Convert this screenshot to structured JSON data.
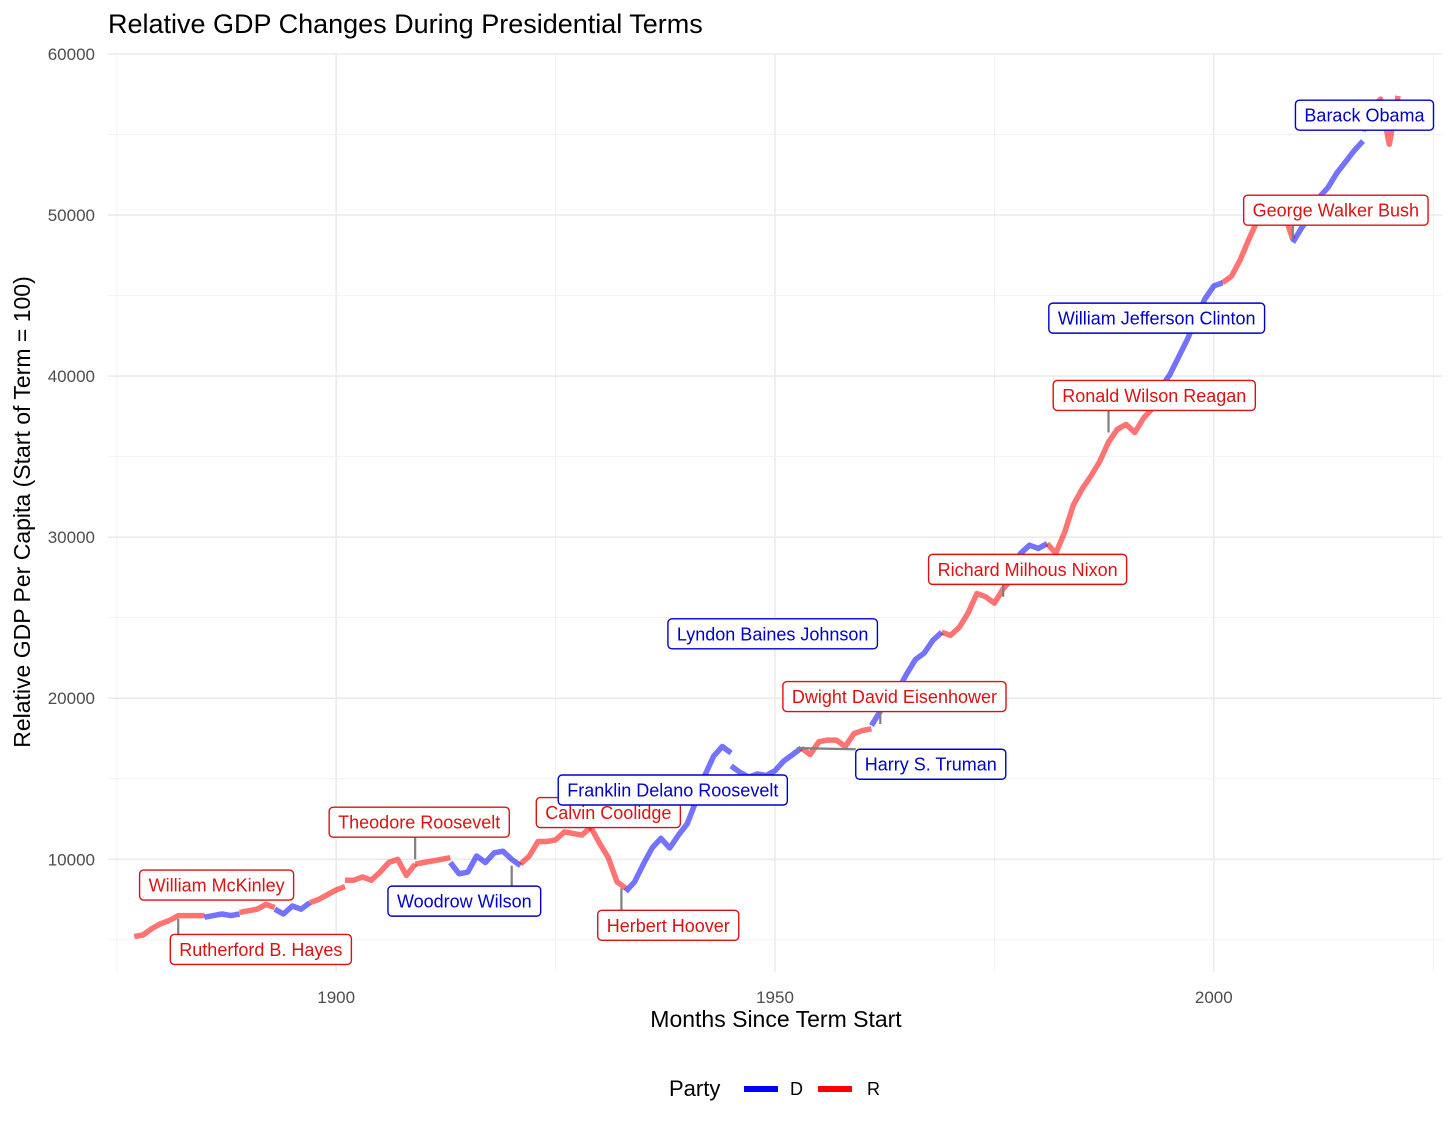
{
  "chart_data": {
    "type": "line",
    "title": "Relative GDP Changes During Presidential Terms",
    "xlabel": "Months Since Term Start",
    "ylabel": "Relative GDP Per Capita (Start of Term = 100)",
    "xlim": [
      1874,
      2026
    ],
    "ylim": [
      3000,
      60000
    ],
    "x_ticks": [
      1900,
      1950,
      2000
    ],
    "y_ticks": [
      10000,
      20000,
      30000,
      40000,
      50000,
      60000
    ],
    "grid": true,
    "legend": {
      "title": "Party",
      "placement": "bottom",
      "entries": [
        {
          "label": "D",
          "color": "#0000ff"
        },
        {
          "label": "R",
          "color": "#ff0000"
        }
      ]
    },
    "colors": {
      "D": "#0000ff",
      "R": "#ff0000",
      "D_label": "#0000cc",
      "R_label": "#dd1111"
    },
    "series": [
      {
        "party": "R",
        "points": [
          [
            1877,
            5200
          ],
          [
            1878,
            5300
          ],
          [
            1879,
            5700
          ],
          [
            1880,
            6000
          ],
          [
            1881,
            6200
          ]
        ]
      },
      {
        "party": "R",
        "points": [
          [
            1881,
            6200
          ],
          [
            1882,
            6500
          ],
          [
            1883,
            6500
          ],
          [
            1884,
            6500
          ],
          [
            1885,
            6500
          ]
        ]
      },
      {
        "party": "D",
        "points": [
          [
            1885,
            6400
          ],
          [
            1886,
            6500
          ],
          [
            1887,
            6600
          ],
          [
            1888,
            6500
          ],
          [
            1889,
            6600
          ]
        ]
      },
      {
        "party": "R",
        "points": [
          [
            1889,
            6700
          ],
          [
            1890,
            6800
          ],
          [
            1891,
            6900
          ],
          [
            1892,
            7200
          ],
          [
            1893,
            7000
          ]
        ]
      },
      {
        "party": "D",
        "points": [
          [
            1893,
            6900
          ],
          [
            1894,
            6600
          ],
          [
            1895,
            7100
          ],
          [
            1896,
            6900
          ],
          [
            1897,
            7300
          ]
        ]
      },
      {
        "party": "R",
        "points": [
          [
            1897,
            7300
          ],
          [
            1898,
            7500
          ],
          [
            1899,
            7800
          ],
          [
            1900,
            8100
          ],
          [
            1901,
            8300
          ]
        ]
      },
      {
        "party": "R",
        "points": [
          [
            1901,
            8700
          ],
          [
            1902,
            8700
          ],
          [
            1903,
            8900
          ],
          [
            1904,
            8700
          ],
          [
            1905,
            9200
          ],
          [
            1906,
            9800
          ],
          [
            1907,
            10000
          ],
          [
            1908,
            9000
          ],
          [
            1909,
            9700
          ]
        ]
      },
      {
        "party": "R",
        "points": [
          [
            1909,
            9700
          ],
          [
            1910,
            9800
          ],
          [
            1911,
            9900
          ],
          [
            1912,
            10000
          ],
          [
            1913,
            10100
          ]
        ]
      },
      {
        "party": "D",
        "points": [
          [
            1913,
            9800
          ],
          [
            1914,
            9100
          ],
          [
            1915,
            9200
          ],
          [
            1916,
            10200
          ],
          [
            1917,
            9800
          ],
          [
            1918,
            10400
          ],
          [
            1919,
            10500
          ],
          [
            1920,
            10000
          ],
          [
            1921,
            9600
          ]
        ]
      },
      {
        "party": "R",
        "points": [
          [
            1921,
            9700
          ],
          [
            1922,
            10200
          ],
          [
            1923,
            11100
          ],
          [
            1924,
            11100
          ],
          [
            1925,
            11200
          ],
          [
            1926,
            11700
          ],
          [
            1927,
            11600
          ],
          [
            1928,
            11500
          ],
          [
            1929,
            12000
          ]
        ]
      },
      {
        "party": "R",
        "points": [
          [
            1929,
            12000
          ],
          [
            1930,
            11000
          ],
          [
            1931,
            10100
          ],
          [
            1932,
            8600
          ],
          [
            1933,
            8200
          ]
        ]
      },
      {
        "party": "D",
        "points": [
          [
            1933,
            8000
          ],
          [
            1934,
            8600
          ],
          [
            1935,
            9700
          ],
          [
            1936,
            10700
          ],
          [
            1937,
            11300
          ],
          [
            1938,
            10700
          ],
          [
            1939,
            11500
          ],
          [
            1940,
            12200
          ],
          [
            1941,
            13600
          ],
          [
            1942,
            15200
          ],
          [
            1943,
            16400
          ],
          [
            1944,
            17000
          ],
          [
            1945,
            16600
          ]
        ]
      },
      {
        "party": "D",
        "points": [
          [
            1945,
            15800
          ],
          [
            1946,
            15400
          ],
          [
            1947,
            15100
          ],
          [
            1948,
            15300
          ],
          [
            1949,
            15200
          ],
          [
            1950,
            15500
          ],
          [
            1951,
            16100
          ],
          [
            1952,
            16500
          ],
          [
            1953,
            16900
          ]
        ]
      },
      {
        "party": "R",
        "points": [
          [
            1953,
            16900
          ],
          [
            1954,
            16500
          ],
          [
            1955,
            17300
          ],
          [
            1956,
            17400
          ],
          [
            1957,
            17400
          ],
          [
            1958,
            17000
          ],
          [
            1959,
            17800
          ],
          [
            1960,
            18000
          ],
          [
            1961,
            18100
          ]
        ]
      },
      {
        "party": "D",
        "points": [
          [
            1961,
            18300
          ],
          [
            1962,
            19200
          ],
          [
            1963,
            19800
          ],
          [
            1964,
            20500
          ],
          [
            1965,
            21500
          ],
          [
            1966,
            22400
          ],
          [
            1967,
            22800
          ],
          [
            1968,
            23600
          ],
          [
            1969,
            24100
          ]
        ]
      },
      {
        "party": "R",
        "points": [
          [
            1969,
            24100
          ],
          [
            1970,
            23900
          ],
          [
            1971,
            24400
          ],
          [
            1972,
            25300
          ],
          [
            1973,
            26500
          ],
          [
            1974,
            26300
          ],
          [
            1975,
            25900
          ],
          [
            1976,
            26800
          ],
          [
            1977,
            27400
          ]
        ]
      },
      {
        "party": "D",
        "points": [
          [
            1977,
            28200
          ],
          [
            1978,
            29000
          ],
          [
            1979,
            29500
          ],
          [
            1980,
            29300
          ],
          [
            1981,
            29600
          ]
        ]
      },
      {
        "party": "R",
        "points": [
          [
            1981,
            29600
          ],
          [
            1982,
            29000
          ],
          [
            1983,
            30300
          ],
          [
            1984,
            32000
          ],
          [
            1985,
            33000
          ],
          [
            1986,
            33800
          ],
          [
            1987,
            34700
          ],
          [
            1988,
            35900
          ],
          [
            1989,
            36700
          ],
          [
            1990,
            37000
          ],
          [
            1991,
            36500
          ],
          [
            1992,
            37400
          ],
          [
            1993,
            38000
          ]
        ]
      },
      {
        "party": "D",
        "points": [
          [
            1993,
            38500
          ],
          [
            1994,
            39300
          ],
          [
            1995,
            40100
          ],
          [
            1996,
            41200
          ],
          [
            1997,
            42300
          ],
          [
            1998,
            43600
          ],
          [
            1999,
            44800
          ],
          [
            2000,
            45600
          ],
          [
            2001,
            45800
          ]
        ]
      },
      {
        "party": "R",
        "points": [
          [
            2001,
            45800
          ],
          [
            2002,
            46200
          ],
          [
            2003,
            47200
          ],
          [
            2004,
            48500
          ],
          [
            2005,
            49700
          ],
          [
            2006,
            50600
          ],
          [
            2007,
            50600
          ],
          [
            2008,
            50100
          ],
          [
            2009,
            48500
          ]
        ]
      },
      {
        "party": "D",
        "points": [
          [
            2009,
            48300
          ],
          [
            2010,
            49200
          ],
          [
            2011,
            50000
          ],
          [
            2012,
            51100
          ],
          [
            2013,
            51700
          ],
          [
            2014,
            52600
          ],
          [
            2015,
            53300
          ],
          [
            2016,
            54000
          ],
          [
            2017,
            54600
          ]
        ]
      },
      {
        "party": "R",
        "points": [
          [
            2017,
            55200
          ],
          [
            2018,
            56600
          ],
          [
            2019,
            57200
          ],
          [
            2020,
            54400
          ],
          [
            2021,
            57400
          ]
        ]
      }
    ],
    "annotations": [
      {
        "text": "Rutherford B. Hayes",
        "party": "R",
        "box_x": 1881.1,
        "box_y": 4400,
        "anchor_x": 1882,
        "anchor_y": 6300
      },
      {
        "text": "William McKinley",
        "party": "R",
        "box_x": 1877.6,
        "box_y": 8400,
        "anchor_x": null,
        "anchor_y": null
      },
      {
        "text": "Theodore Roosevelt",
        "party": "R",
        "box_x": 1899.2,
        "box_y": 12300,
        "anchor_x": 1909,
        "anchor_y": 10000
      },
      {
        "text": "Woodrow Wilson",
        "party": "D",
        "box_x": 1905.9,
        "box_y": 7400,
        "anchor_x": 1920,
        "anchor_y": 9600
      },
      {
        "text": "Calvin Coolidge",
        "party": "R",
        "box_x": 1922.8,
        "box_y": 12900,
        "anchor_x": null,
        "anchor_y": null
      },
      {
        "text": "Herbert Hoover",
        "party": "R",
        "box_x": 1929.8,
        "box_y": 5900,
        "anchor_x": 1932.5,
        "anchor_y": 8200
      },
      {
        "text": "Franklin Delano Roosevelt",
        "party": "D",
        "box_x": 1925.3,
        "box_y": 14300,
        "anchor_x": null,
        "anchor_y": null
      },
      {
        "text": "Harry S. Truman",
        "party": "D",
        "box_x": 1959.2,
        "box_y": 15900,
        "anchor_x": 1952.5,
        "anchor_y": 16900
      },
      {
        "text": "Dwight David Eisenhower",
        "party": "R",
        "box_x": 1950.9,
        "box_y": 20100,
        "anchor_x": 1962,
        "anchor_y": 18400
      },
      {
        "text": "Lyndon Baines Johnson",
        "party": "D",
        "box_x": 1937.8,
        "box_y": 24000,
        "anchor_x": null,
        "anchor_y": null
      },
      {
        "text": "Richard Milhous Nixon",
        "party": "R",
        "box_x": 1967.5,
        "box_y": 28000,
        "anchor_x": 1976,
        "anchor_y": 26300
      },
      {
        "text": "Ronald Wilson Reagan",
        "party": "R",
        "box_x": 1981.7,
        "box_y": 38800,
        "anchor_x": 1988,
        "anchor_y": 36500
      },
      {
        "text": "William Jefferson Clinton",
        "party": "D",
        "box_x": 1981.2,
        "box_y": 43600,
        "anchor_x": null,
        "anchor_y": null
      },
      {
        "text": "George Walker Bush",
        "party": "R",
        "box_x": 2003.4,
        "box_y": 50300,
        "anchor_x": 2009,
        "anchor_y": 48500
      },
      {
        "text": "Barack Obama",
        "party": "D",
        "box_x": 2009.3,
        "box_y": 56200,
        "anchor_x": null,
        "anchor_y": null
      }
    ]
  }
}
